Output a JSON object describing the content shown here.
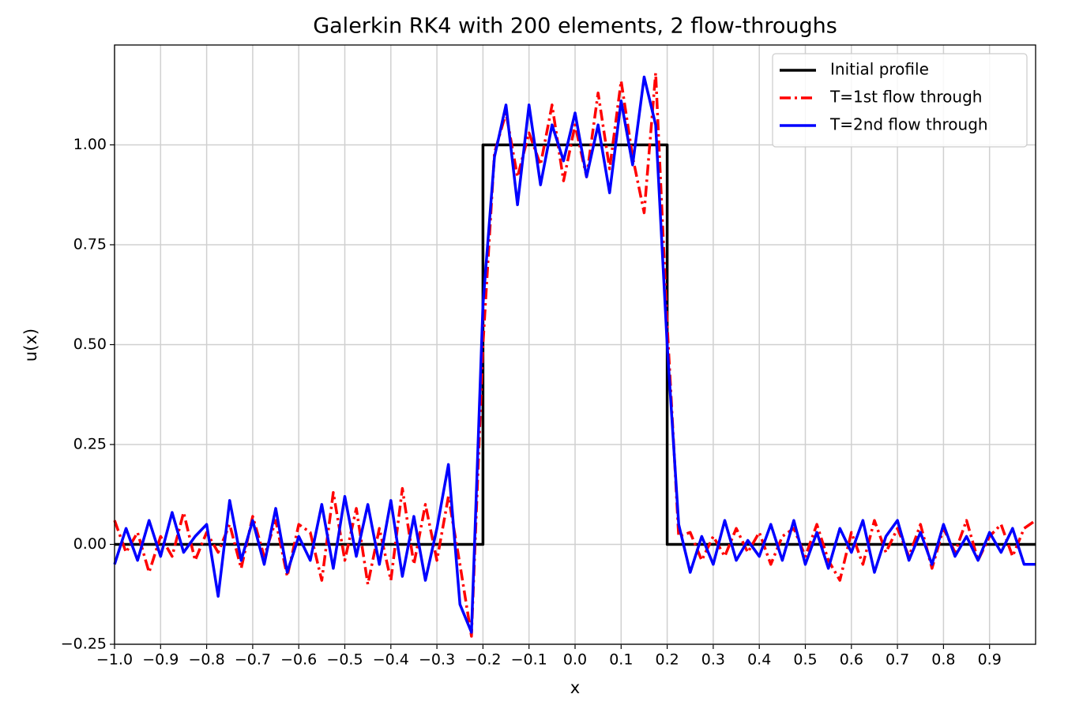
{
  "chart_data": {
    "type": "line",
    "title": "Galerkin RK4 with 200 elements, 2 flow-throughs",
    "xlabel": "x",
    "ylabel": "u(x)",
    "xlim": [
      -1,
      1
    ],
    "ylim": [
      -0.25,
      1.25
    ],
    "xticks": [
      {
        "value": -1,
        "label": "−1.0"
      },
      {
        "value": -0.9,
        "label": "−0.9"
      },
      {
        "value": -0.8,
        "label": "−0.8"
      },
      {
        "value": -0.7,
        "label": "−0.7"
      },
      {
        "value": -0.6,
        "label": "−0.6"
      },
      {
        "value": -0.5,
        "label": "−0.5"
      },
      {
        "value": -0.4,
        "label": "−0.4"
      },
      {
        "value": -0.3,
        "label": "−0.3"
      },
      {
        "value": -0.2,
        "label": "−0.2"
      },
      {
        "value": -0.1,
        "label": "−0.1"
      },
      {
        "value": 0,
        "label": "0.0"
      },
      0.1,
      0.2,
      0.3,
      0.4,
      0.5,
      0.6,
      0.7,
      0.8,
      0.9
    ],
    "yticks": [
      {
        "value": -0.25,
        "label": "−0.25"
      },
      {
        "value": 0,
        "label": "0.00"
      },
      {
        "value": 0.25,
        "label": "0.25"
      },
      {
        "value": 0.5,
        "label": "0.50"
      },
      {
        "value": 0.75,
        "label": "0.75"
      },
      {
        "value": 1,
        "label": "1.00"
      }
    ],
    "grid": true,
    "legend": "upper right",
    "series": [
      {
        "name": "Initial profile",
        "color": "#000000",
        "style": "solid",
        "x": [
          -1,
          -0.2,
          -0.2,
          0.2,
          0.2,
          1
        ],
        "values": [
          0,
          0,
          1,
          1,
          0,
          0
        ]
      },
      {
        "name": "T=1st flow through",
        "color": "#ff0000",
        "style": "dashdot",
        "x": [
          -1,
          -0.975,
          -0.95,
          -0.925,
          -0.9,
          -0.875,
          -0.85,
          -0.825,
          -0.8,
          -0.775,
          -0.75,
          -0.725,
          -0.7,
          -0.675,
          -0.65,
          -0.625,
          -0.6,
          -0.575,
          -0.55,
          -0.525,
          -0.5,
          -0.475,
          -0.45,
          -0.425,
          -0.4,
          -0.375,
          -0.35,
          -0.325,
          -0.3,
          -0.275,
          -0.25,
          -0.225,
          -0.2,
          -0.175,
          -0.15,
          -0.125,
          -0.1,
          -0.075,
          -0.05,
          -0.025,
          0,
          0.025,
          0.05,
          0.075,
          0.1,
          0.125,
          0.15,
          0.175,
          0.2,
          0.225,
          0.25,
          0.275,
          0.3,
          0.325,
          0.35,
          0.375,
          0.4,
          0.425,
          0.45,
          0.475,
          0.5,
          0.525,
          0.55,
          0.575,
          0.6,
          0.625,
          0.65,
          0.675,
          0.7,
          0.725,
          0.75,
          0.775,
          0.8,
          0.825,
          0.85,
          0.875,
          0.9,
          0.925,
          0.95,
          0.975,
          1
        ],
        "values": [
          0.06,
          -0.02,
          0.03,
          -0.07,
          0.02,
          -0.03,
          0.08,
          -0.04,
          0.03,
          -0.02,
          0.05,
          -0.06,
          0.07,
          -0.03,
          0.06,
          -0.08,
          0.05,
          0.03,
          -0.09,
          0.13,
          -0.04,
          0.09,
          -0.1,
          0.04,
          -0.09,
          0.14,
          -0.05,
          0.1,
          -0.04,
          0.12,
          -0.05,
          -0.23,
          0.5,
          0.98,
          1.08,
          0.92,
          1.03,
          0.95,
          1.1,
          0.91,
          1.05,
          0.92,
          1.13,
          0.94,
          1.16,
          0.97,
          0.83,
          1.18,
          0.55,
          0.02,
          0.03,
          -0.04,
          0.02,
          -0.03,
          0.04,
          -0.02,
          0.03,
          -0.05,
          0.02,
          0.04,
          -0.03,
          0.05,
          -0.04,
          -0.09,
          0.03,
          -0.05,
          0.06,
          -0.02,
          0.04,
          -0.03,
          0.05,
          -0.06,
          0.04,
          -0.02,
          0.06,
          -0.04,
          0.02,
          0.05,
          -0.03,
          0.04,
          0.06
        ]
      },
      {
        "name": "T=2nd flow through",
        "color": "#0000ff",
        "style": "solid",
        "x": [
          -1,
          -0.975,
          -0.95,
          -0.925,
          -0.9,
          -0.875,
          -0.85,
          -0.825,
          -0.8,
          -0.775,
          -0.75,
          -0.725,
          -0.7,
          -0.675,
          -0.65,
          -0.625,
          -0.6,
          -0.575,
          -0.55,
          -0.525,
          -0.5,
          -0.475,
          -0.45,
          -0.425,
          -0.4,
          -0.375,
          -0.35,
          -0.325,
          -0.3,
          -0.275,
          -0.25,
          -0.225,
          -0.2,
          -0.175,
          -0.15,
          -0.125,
          -0.1,
          -0.075,
          -0.05,
          -0.025,
          0,
          0.025,
          0.05,
          0.075,
          0.1,
          0.125,
          0.15,
          0.175,
          0.2,
          0.225,
          0.25,
          0.275,
          0.3,
          0.325,
          0.35,
          0.375,
          0.4,
          0.425,
          0.45,
          0.475,
          0.5,
          0.525,
          0.55,
          0.575,
          0.6,
          0.625,
          0.65,
          0.675,
          0.7,
          0.725,
          0.75,
          0.775,
          0.8,
          0.825,
          0.85,
          0.875,
          0.9,
          0.925,
          0.95,
          0.975,
          1
        ],
        "values": [
          -0.05,
          0.04,
          -0.04,
          0.06,
          -0.03,
          0.08,
          -0.02,
          0.02,
          0.05,
          -0.13,
          0.11,
          -0.04,
          0.06,
          -0.05,
          0.09,
          -0.07,
          0.02,
          -0.04,
          0.1,
          -0.06,
          0.12,
          -0.03,
          0.1,
          -0.05,
          0.11,
          -0.08,
          0.07,
          -0.09,
          0.04,
          0.2,
          -0.15,
          -0.22,
          0.6,
          0.97,
          1.1,
          0.85,
          1.1,
          0.9,
          1.05,
          0.96,
          1.08,
          0.92,
          1.05,
          0.88,
          1.11,
          0.95,
          1.17,
          1.05,
          0.5,
          0.05,
          -0.07,
          0.02,
          -0.05,
          0.06,
          -0.04,
          0.01,
          -0.03,
          0.05,
          -0.04,
          0.06,
          -0.05,
          0.03,
          -0.06,
          0.04,
          -0.02,
          0.06,
          -0.07,
          0.02,
          0.06,
          -0.04,
          0.03,
          -0.05,
          0.05,
          -0.03,
          0.02,
          -0.04,
          0.03,
          -0.02,
          0.04,
          -0.05,
          -0.05
        ]
      }
    ]
  }
}
